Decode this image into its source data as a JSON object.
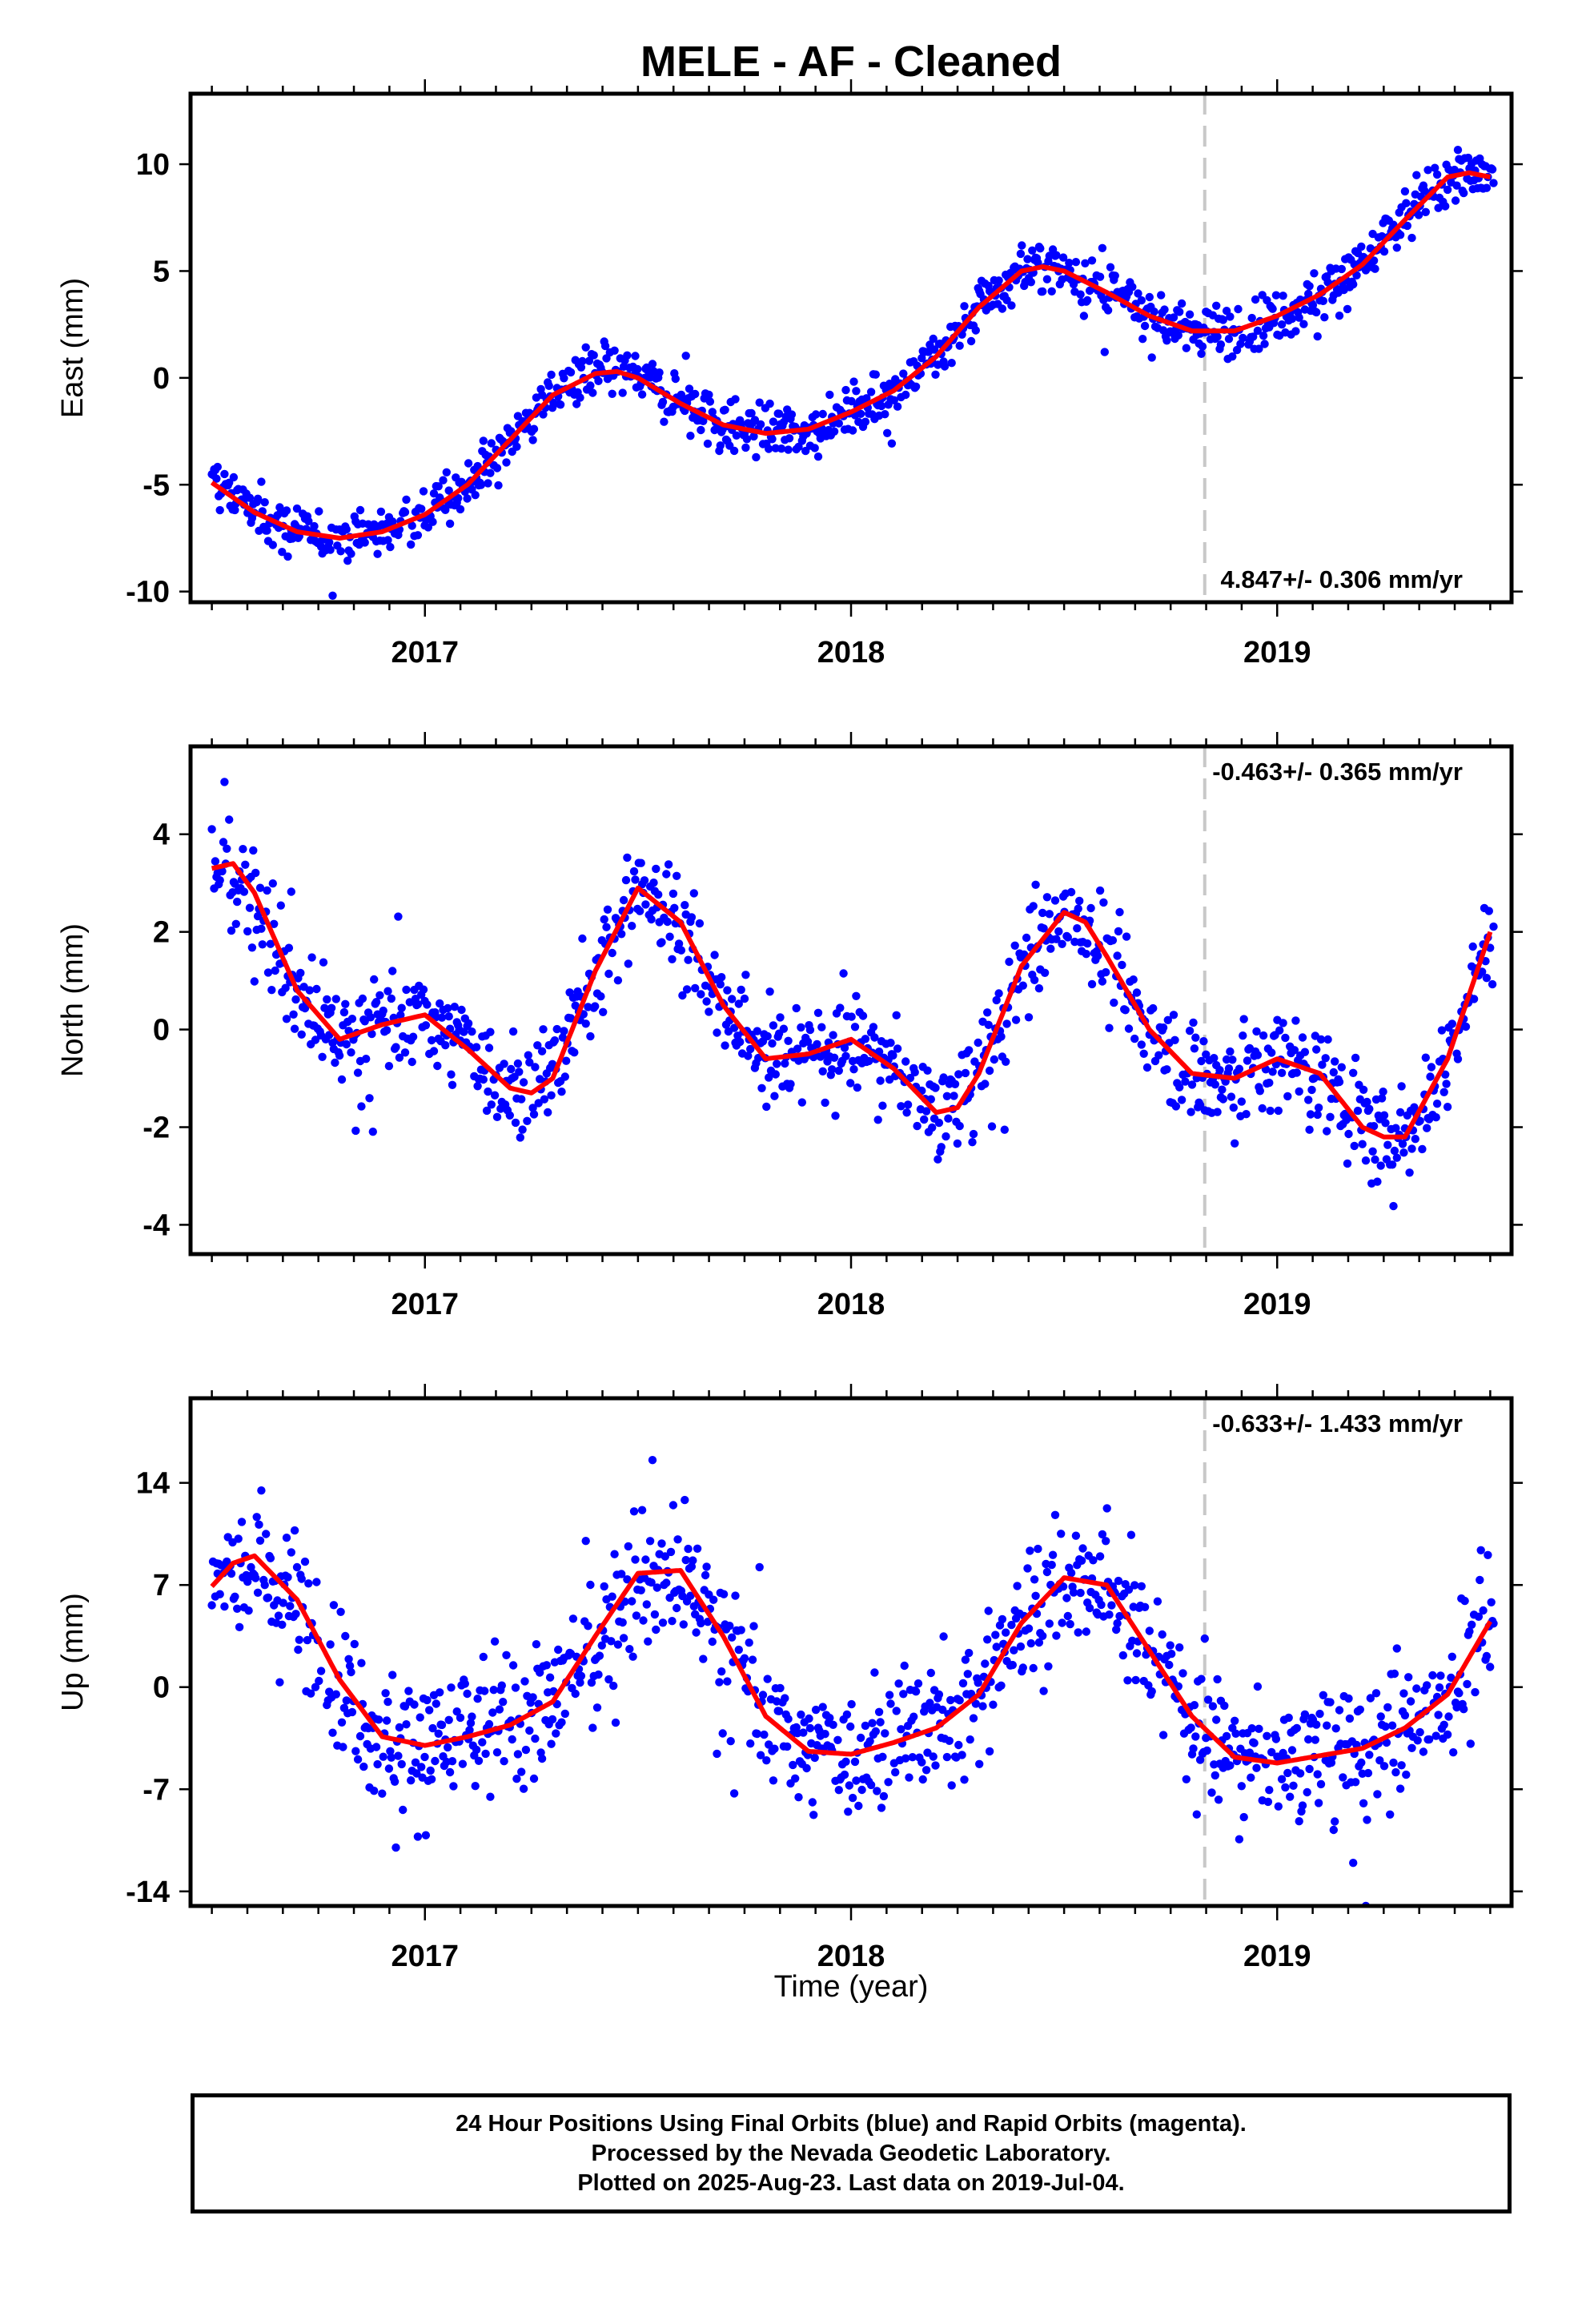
{
  "title": "MELE  - AF - Cleaned",
  "xlabel": "Time (year)",
  "footer": {
    "line1": "24 Hour Positions Using Final Orbits (blue) and Rapid Orbits (magenta).",
    "line2": "Processed by the Nevada Geodetic Laboratory.",
    "line3": "Plotted on 2025-Aug-23. Last data on 2019-Jul-04."
  },
  "colors": {
    "final_orbits": "#0000ff",
    "fit": "#ff0000",
    "marker_line": "#c8c8c8",
    "axes": "#000000"
  },
  "chart_data": [
    {
      "type": "scatter",
      "ylabel": "East (mm)",
      "rate": "4.847+/- 0.306 mm/yr",
      "xlim": [
        2016.45,
        2019.55
      ],
      "ylim": [
        -10.5,
        13.3
      ],
      "yticks": [
        -10,
        -5,
        0,
        5,
        10
      ],
      "xticks": [
        2017,
        2018,
        2019
      ],
      "vline_x": 2018.83,
      "fit": {
        "x": [
          2016.5,
          2016.6,
          2016.7,
          2016.8,
          2016.9,
          2017.0,
          2017.1,
          2017.2,
          2017.3,
          2017.4,
          2017.45,
          2017.5,
          2017.6,
          2017.7,
          2017.8,
          2017.9,
          2018.0,
          2018.1,
          2018.2,
          2018.3,
          2018.4,
          2018.45,
          2018.5,
          2018.6,
          2018.7,
          2018.8,
          2018.9,
          2019.0,
          2019.1,
          2019.2,
          2019.3,
          2019.4,
          2019.45,
          2019.5
        ],
        "y": [
          -4.9,
          -6.3,
          -7.2,
          -7.5,
          -7.2,
          -6.4,
          -5.0,
          -2.9,
          -0.8,
          0.2,
          0.3,
          0.0,
          -1.2,
          -2.2,
          -2.6,
          -2.4,
          -1.6,
          -0.6,
          1.0,
          3.3,
          5.0,
          5.2,
          5.0,
          4.0,
          2.9,
          2.2,
          2.2,
          2.9,
          3.9,
          5.3,
          7.4,
          9.4,
          9.6,
          9.4
        ]
      },
      "points_model": {
        "start": 2016.5,
        "end": 2019.51,
        "step": 0.0027,
        "noise_sd": 0.85
      }
    },
    {
      "type": "scatter",
      "ylabel": "North (mm)",
      "rate": "-0.463+/- 0.365 mm/yr",
      "xlim": [
        2016.45,
        2019.55
      ],
      "ylim": [
        -4.6,
        5.8
      ],
      "yticks": [
        -4,
        -2,
        0,
        2,
        4
      ],
      "xticks": [
        2017,
        2018,
        2019
      ],
      "vline_x": 2018.83,
      "fit": {
        "x": [
          2016.5,
          2016.55,
          2016.6,
          2016.7,
          2016.8,
          2016.9,
          2017.0,
          2017.1,
          2017.2,
          2017.25,
          2017.3,
          2017.4,
          2017.5,
          2017.6,
          2017.7,
          2017.8,
          2017.9,
          2018.0,
          2018.1,
          2018.2,
          2018.25,
          2018.3,
          2018.4,
          2018.5,
          2018.55,
          2018.6,
          2018.7,
          2018.8,
          2018.9,
          2019.0,
          2019.1,
          2019.2,
          2019.25,
          2019.3,
          2019.4,
          2019.5
        ],
        "y": [
          3.3,
          3.4,
          2.8,
          0.8,
          -0.2,
          0.1,
          0.3,
          -0.4,
          -1.2,
          -1.3,
          -1.0,
          1.2,
          2.9,
          2.2,
          0.5,
          -0.6,
          -0.5,
          -0.2,
          -0.8,
          -1.7,
          -1.6,
          -0.9,
          1.3,
          2.4,
          2.2,
          1.5,
          0.0,
          -0.9,
          -1.0,
          -0.6,
          -0.9,
          -2.0,
          -2.2,
          -2.2,
          -0.6,
          2.0
        ]
      },
      "points_model": {
        "start": 2016.5,
        "end": 2019.51,
        "step": 0.0027,
        "noise_sd": 0.75
      }
    },
    {
      "type": "scatter",
      "ylabel": "Up (mm)",
      "rate": "-0.633+/- 1.433 mm/yr",
      "xlim": [
        2016.45,
        2019.55
      ],
      "ylim": [
        -15.0,
        19.8
      ],
      "yticks": [
        -14,
        -7,
        0,
        7,
        14
      ],
      "xticks": [
        2017,
        2018,
        2019
      ],
      "vline_x": 2018.83,
      "fit": {
        "x": [
          2016.5,
          2016.55,
          2016.6,
          2016.7,
          2016.8,
          2016.9,
          2017.0,
          2017.1,
          2017.2,
          2017.3,
          2017.4,
          2017.5,
          2017.6,
          2017.7,
          2017.8,
          2017.9,
          2018.0,
          2018.1,
          2018.2,
          2018.3,
          2018.4,
          2018.5,
          2018.6,
          2018.7,
          2018.8,
          2018.9,
          2019.0,
          2019.1,
          2019.2,
          2019.3,
          2019.4,
          2019.5
        ],
        "y": [
          6.9,
          8.5,
          9.0,
          6.0,
          0.5,
          -3.4,
          -4.0,
          -3.4,
          -2.6,
          -1.0,
          3.5,
          7.8,
          8.0,
          3.5,
          -2.0,
          -4.4,
          -4.6,
          -3.8,
          -2.8,
          -0.5,
          4.4,
          7.5,
          7.0,
          2.5,
          -2.0,
          -4.8,
          -5.2,
          -4.7,
          -4.2,
          -2.8,
          -0.5,
          4.5
        ]
      },
      "points_model": {
        "start": 2016.5,
        "end": 2019.51,
        "step": 0.0027,
        "noise_sd": 3.3
      }
    }
  ]
}
